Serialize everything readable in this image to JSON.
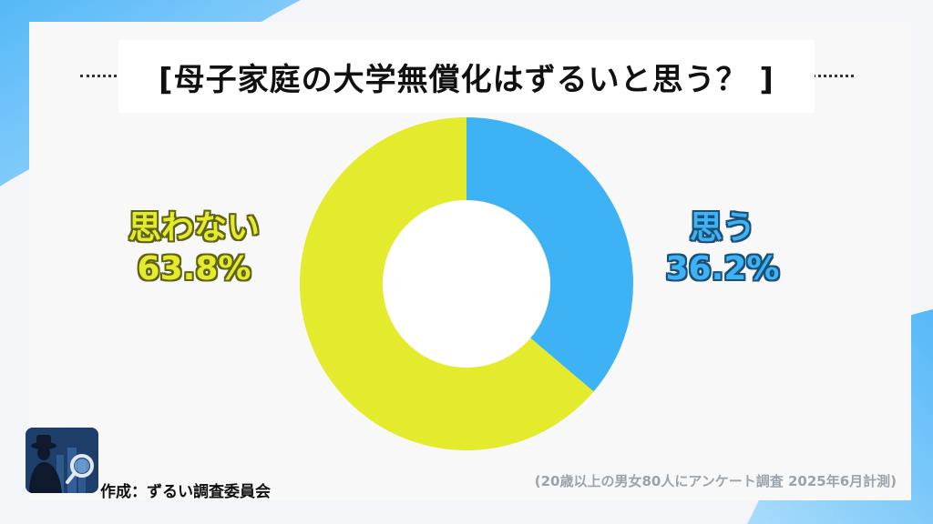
{
  "title": "[母子家庭の大学無償化はずるいと思う？ ]",
  "footer": {
    "author": "作成：ずるい調査委員会",
    "note": "(20歳以上の男女80人にアンケート調査 2025年6月計測)"
  },
  "colors": {
    "yes": "#3db2f5",
    "no": "#e4ea2c",
    "background": "#f3f5f8",
    "accent_blue": "#4fb6f7"
  },
  "icons": {
    "logo": "detective-magnifier-logo"
  },
  "chart_data": {
    "type": "pie",
    "donut": true,
    "title": "[母子家庭の大学無償化はずるいと思う？ ]",
    "slices": [
      {
        "label": "思う",
        "value": 36.2,
        "display": "36.2%"
      },
      {
        "label": "思わない",
        "value": 63.8,
        "display": "63.8%"
      }
    ],
    "legend": "none",
    "grid": false
  }
}
